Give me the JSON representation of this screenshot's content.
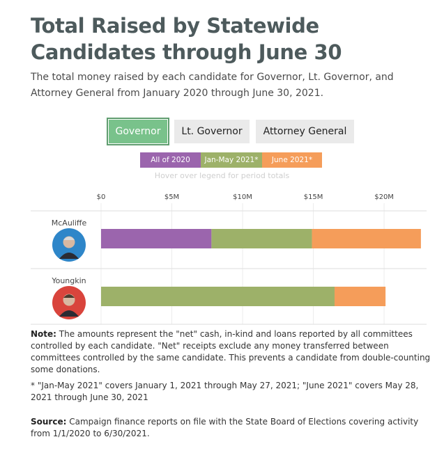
{
  "title": "Total Raised by Statewide Candidates through June 30",
  "subtitle": "The total money raised by each candidate for Governor, Lt. Governor, and Attorney General from January 2020 through June 30, 2021.",
  "tabs": [
    {
      "label": "Governor",
      "active": true
    },
    {
      "label": "Lt. Governor",
      "active": false
    },
    {
      "label": "Attorney General",
      "active": false
    }
  ],
  "legend": {
    "items": [
      {
        "label": "All of 2020",
        "color": "#9b65ad"
      },
      {
        "label": "Jan-May 2021*",
        "color": "#9db169"
      },
      {
        "label": "June 2021*",
        "color": "#f59d5a"
      }
    ],
    "hint": "Hover over legend for period totals"
  },
  "chart_data": {
    "type": "bar",
    "orientation": "horizontal",
    "stacked": true,
    "categories": [
      "McAuliffe",
      "Youngkin"
    ],
    "series": [
      {
        "name": "All of 2020",
        "color": "#9b65ad",
        "values": [
          7.8,
          0
        ]
      },
      {
        "name": "Jan-May 2021*",
        "color": "#9db169",
        "values": [
          7.1,
          16.5
        ]
      },
      {
        "name": "June 2021*",
        "color": "#f59d5a",
        "values": [
          7.7,
          3.6
        ]
      }
    ],
    "x_ticks": [
      "$0",
      "$5M",
      "$10M",
      "$15M",
      "$20M"
    ],
    "x_tick_values": [
      0,
      5,
      10,
      15,
      20
    ],
    "xlim": [
      0,
      23
    ],
    "grid": true,
    "candidate_party_colors": [
      "#2e86c9",
      "#d9443c"
    ]
  },
  "notes": {
    "note_label": "Note:",
    "note_text": " The amounts represent the \"net\" cash, in-kind and loans reported by all committees controlled by each candidate. \"Net\" receipts exclude any money transferred between committees controlled by the same candidate. This prevents a candidate from double-counting some donations.",
    "footnote": "* \"Jan-May 2021\" covers January 1, 2021 through May 27, 2021; \"June 2021\" covers May 28, 2021 through June 30, 2021",
    "source_label": "Source:",
    "source_text": " Campaign finance reports on file with the State Board of Elections covering activity from 1/1/2020 to 6/30/2021."
  }
}
